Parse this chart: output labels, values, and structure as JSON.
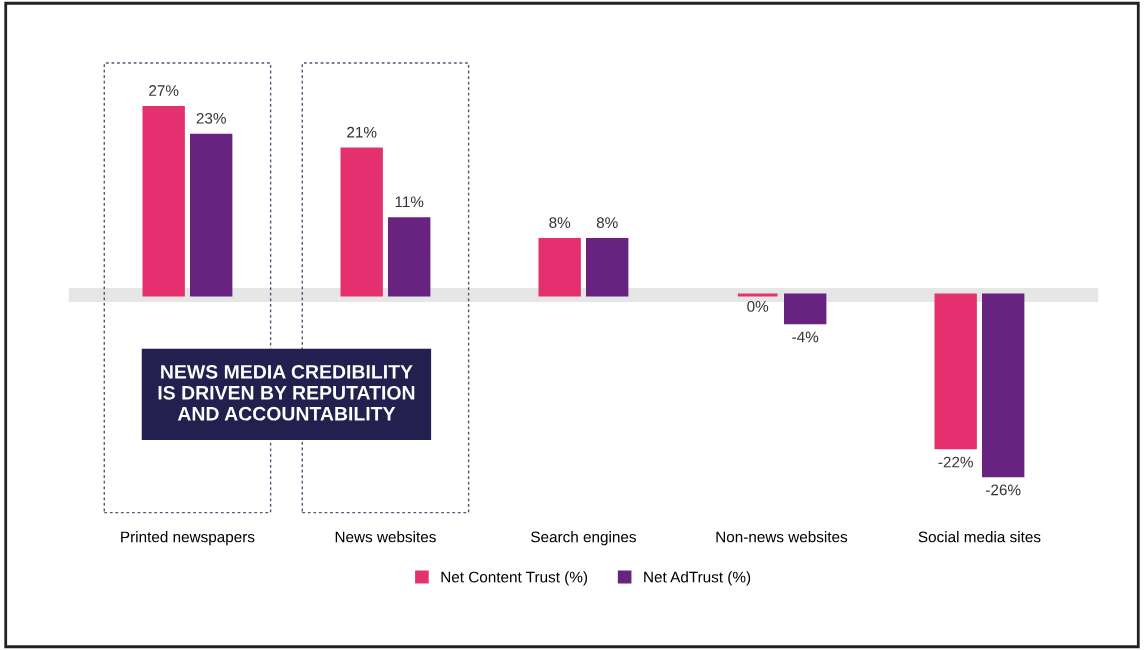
{
  "chart_data": {
    "type": "bar",
    "categories": [
      "Printed newspapers",
      "News websites",
      "Search engines",
      "Non-news websites",
      "Social media sites"
    ],
    "series": [
      {
        "name": "Net Content Trust (%)",
        "color": "#e5306f",
        "values": [
          27,
          21,
          8,
          0,
          -22
        ],
        "value_labels": [
          "27%",
          "21%",
          "8%",
          "0%",
          "-22%"
        ]
      },
      {
        "name": "Net AdTrust (%)",
        "color": "#67237f",
        "values": [
          23,
          11,
          8,
          -4,
          -26
        ],
        "value_labels": [
          "23%",
          "11%",
          "8%",
          "-4%",
          "-26%"
        ]
      }
    ],
    "annotations": [
      "NEWS MEDIA CREDIBILITY\nIS DRIVEN BY REPUTATION\nAND ACCOUNTABILITY"
    ],
    "grid": false,
    "legend": "bottom"
  }
}
